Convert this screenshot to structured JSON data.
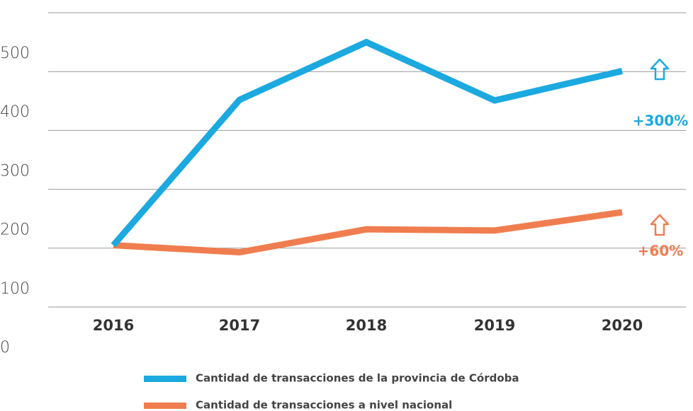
{
  "chart_data": {
    "type": "line",
    "categories": [
      "2016",
      "2017",
      "2018",
      "2019",
      "2020"
    ],
    "series": [
      {
        "name": "Cantidad de transacciones de la provincia de Córdoba",
        "color": "#1ba9e0",
        "values": [
          105,
          352,
          450,
          351,
          401
        ]
      },
      {
        "name": "Cantidad de transacciones a nivel nacional",
        "color": "#f07d4f",
        "values": [
          105,
          93,
          132,
          130,
          161
        ]
      }
    ],
    "ylim": [
      0,
      500
    ],
    "yticks": [
      0,
      100,
      200,
      300,
      400,
      500
    ],
    "grid": true,
    "annotations": [
      {
        "text": "+300%",
        "color": "#1ba9e0"
      },
      {
        "text": "+60%",
        "color": "#f07d4f"
      }
    ]
  }
}
